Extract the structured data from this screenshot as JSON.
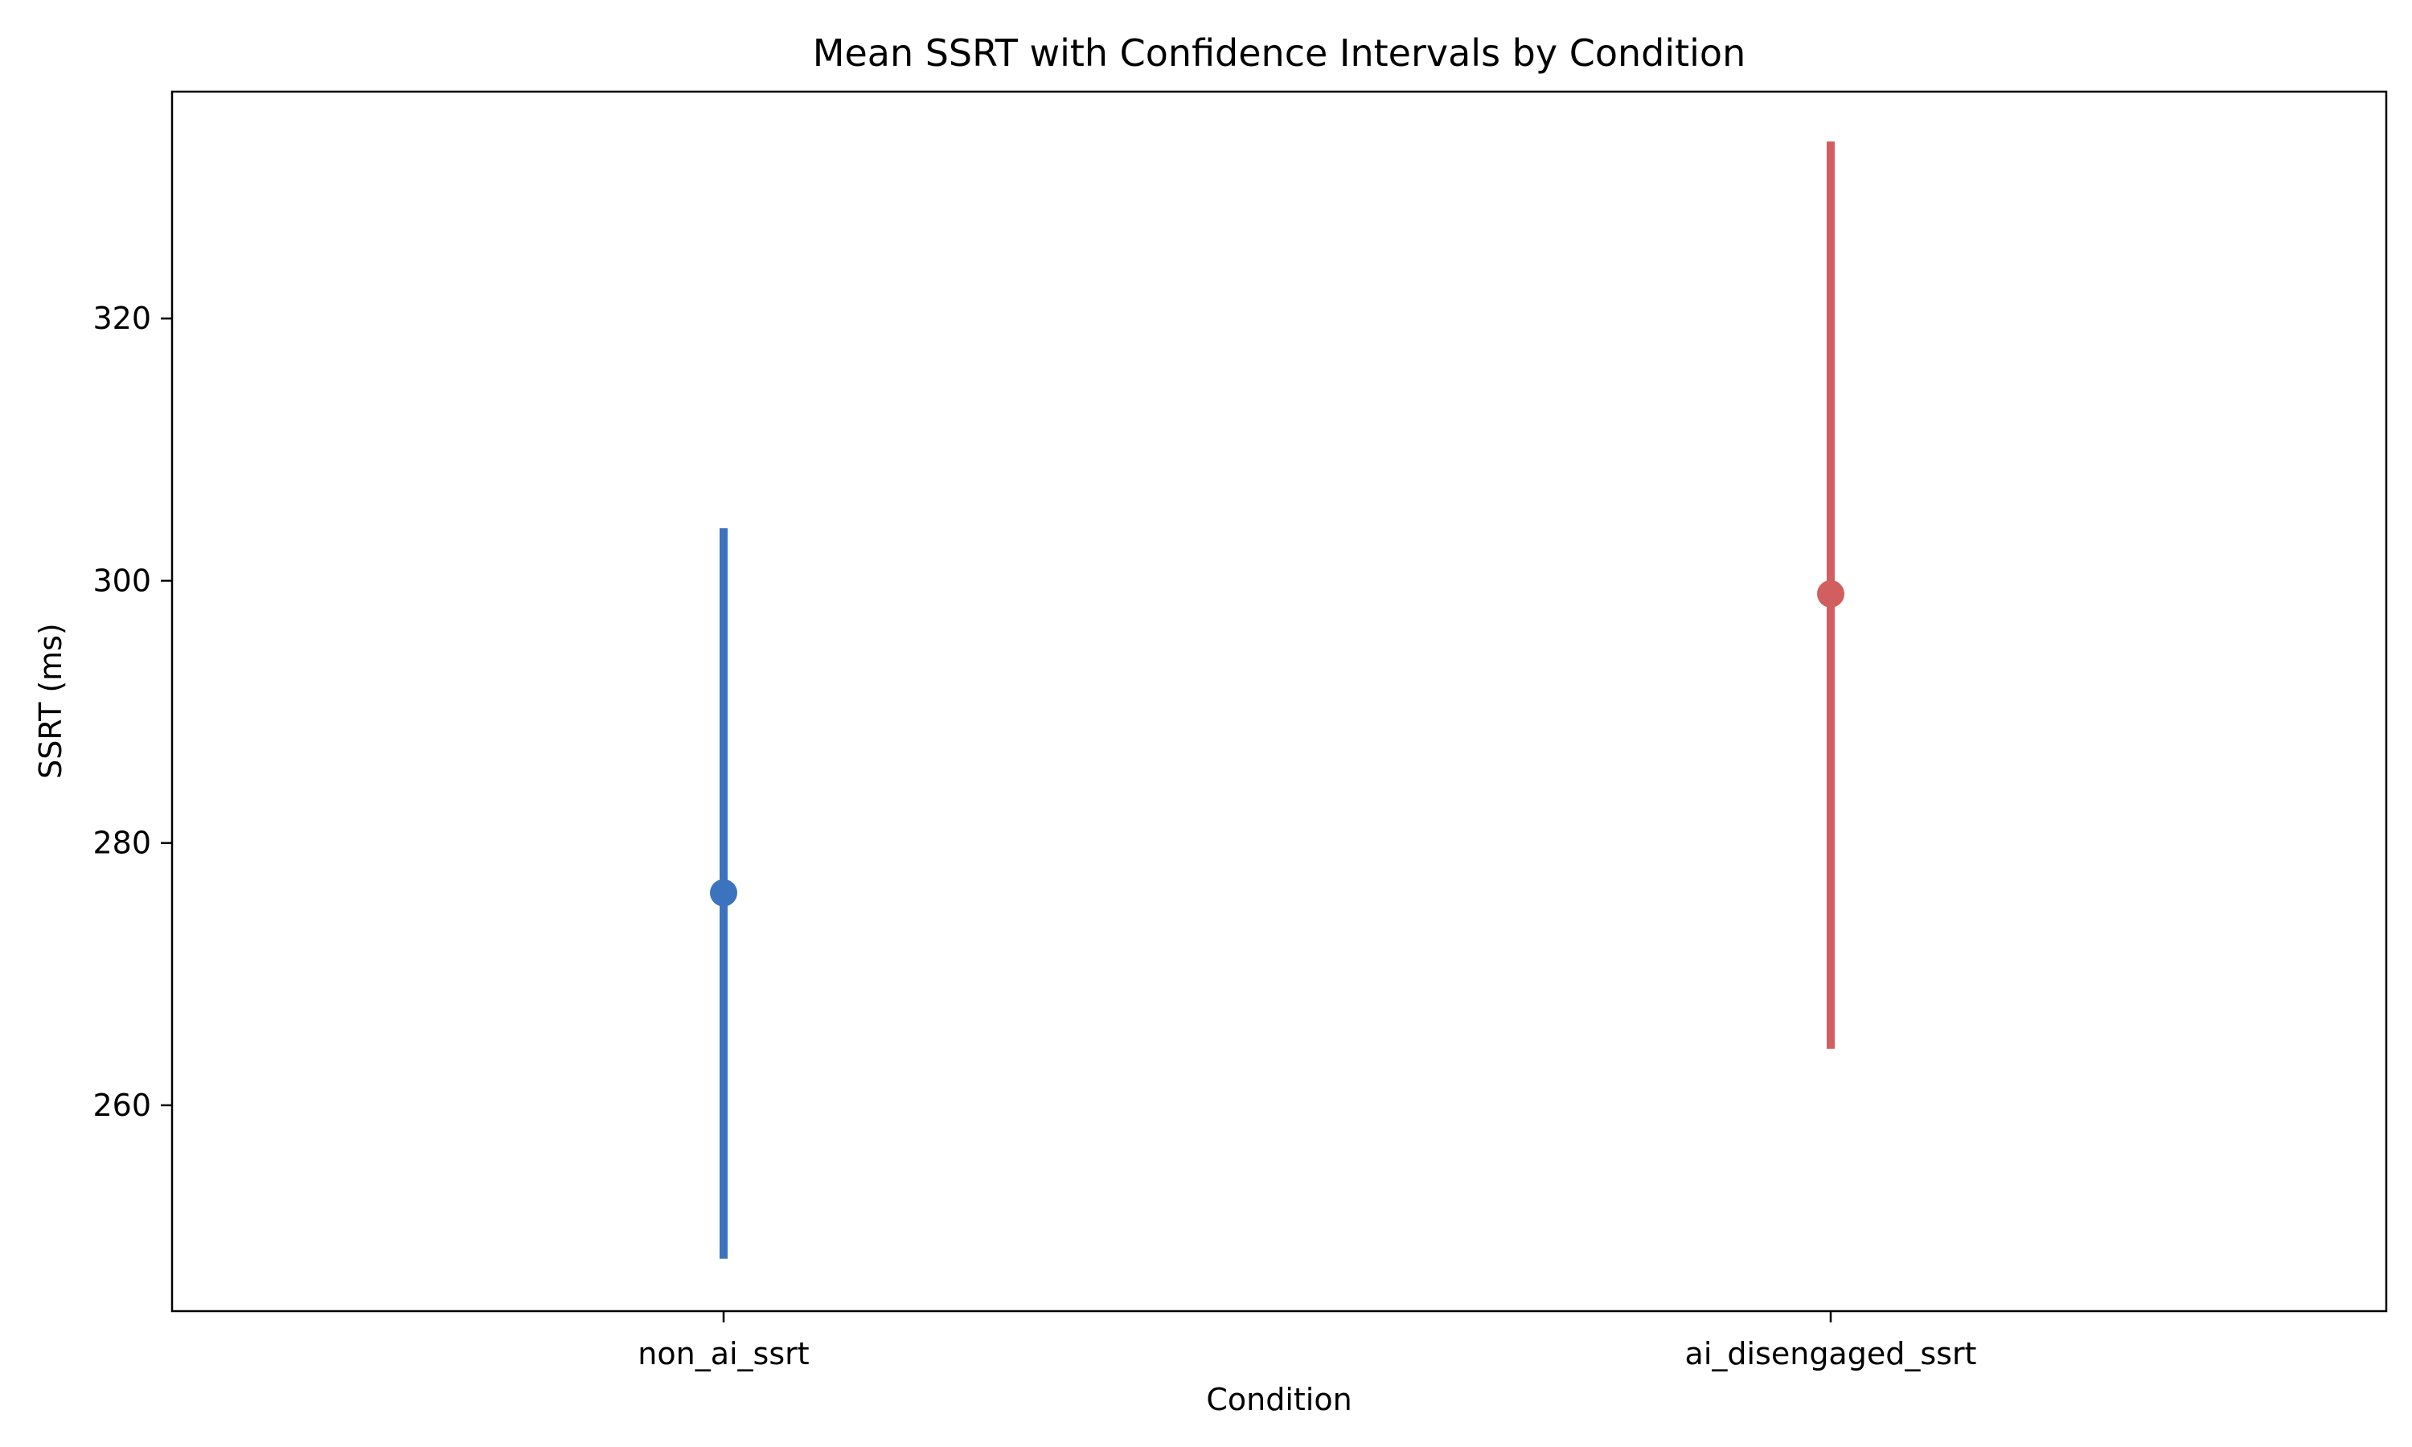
{
  "chart_data": {
    "type": "pointrange",
    "title": "Mean SSRT with Confidence Intervals by Condition",
    "xlabel": "Condition",
    "ylabel": "SSRT (ms)",
    "categories": [
      "non_ai_ssrt",
      "ai_disengaged_ssrt"
    ],
    "series": [
      {
        "values": [
          276.2,
          299.0
        ],
        "ci_low": [
          248.3,
          264.3
        ],
        "ci_high": [
          304.0,
          333.5
        ],
        "colors": [
          "#3b73be",
          "#d25f5f"
        ]
      }
    ],
    "yticks": [
      260,
      280,
      300,
      320
    ],
    "ylim": [
      244.3,
      337.3
    ],
    "grid": false,
    "legend": "none"
  }
}
